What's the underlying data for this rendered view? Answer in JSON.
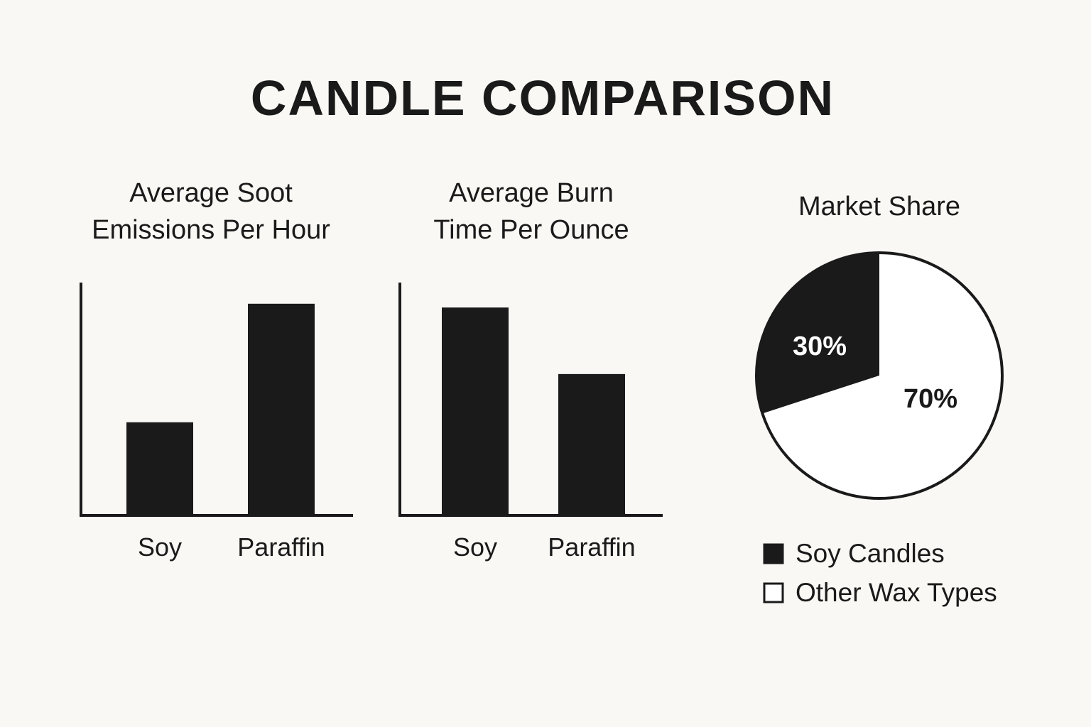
{
  "title": "CANDLE COMPARISON",
  "colors": {
    "background": "#f9f8f4",
    "ink": "#1a1a1a",
    "white": "#ffffff"
  },
  "chart_data": [
    {
      "type": "bar",
      "title": "Average Soot Emissions Per Hour",
      "title_lines": [
        "Average Soot",
        "Emissions Per Hour"
      ],
      "categories": [
        "Soy",
        "Paraffin"
      ],
      "values": [
        0.44,
        1.0
      ],
      "ylim": [
        0,
        1.1
      ],
      "xlabel": "",
      "ylabel": "",
      "grid": false
    },
    {
      "type": "bar",
      "title": "Average Burn Time Per Ounce",
      "title_lines": [
        "Average Burn",
        "Time Per Ounce"
      ],
      "categories": [
        "Soy",
        "Paraffin"
      ],
      "values": [
        1.0,
        0.68
      ],
      "ylim": [
        0,
        1.12
      ],
      "xlabel": "",
      "ylabel": "",
      "grid": false
    },
    {
      "type": "pie",
      "title": "Market Share",
      "title_lines": [
        "Market Share"
      ],
      "slices": [
        {
          "label": "Soy Candles",
          "value": 30,
          "display": "30%",
          "fill": "#1a1a1a",
          "text_color": "#ffffff"
        },
        {
          "label": "Other Wax Types",
          "value": 70,
          "display": "70%",
          "fill": "#ffffff",
          "text_color": "#1a1a1a"
        }
      ],
      "legend_position": "bottom"
    }
  ]
}
